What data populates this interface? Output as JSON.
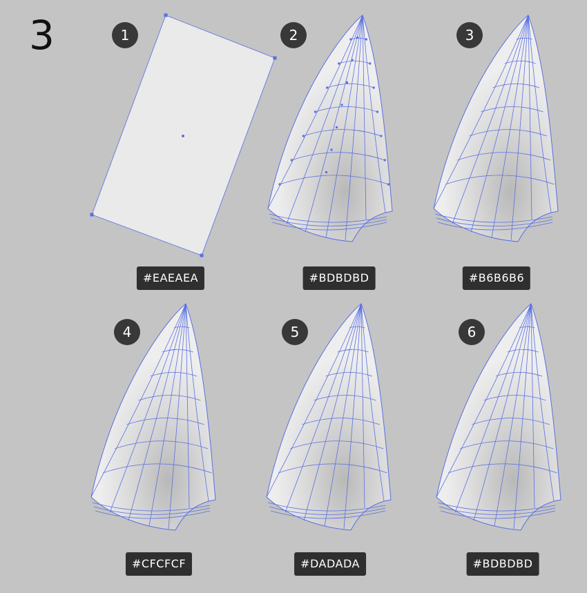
{
  "heading": "3",
  "steps": [
    {
      "number": "1",
      "color": "#EAEAEA"
    },
    {
      "number": "2",
      "color": "#BDBDBD"
    },
    {
      "number": "3",
      "color": "#B6B6B6"
    },
    {
      "number": "4",
      "color": "#CFCFCF"
    },
    {
      "number": "5",
      "color": "#DADADA"
    },
    {
      "number": "6",
      "color": "#BDBDBD"
    }
  ],
  "colors": {
    "background": "#C4C4C4",
    "mesh_line": "#5A6FE0",
    "badge": "#383838",
    "chip": "#2F2F2F"
  }
}
